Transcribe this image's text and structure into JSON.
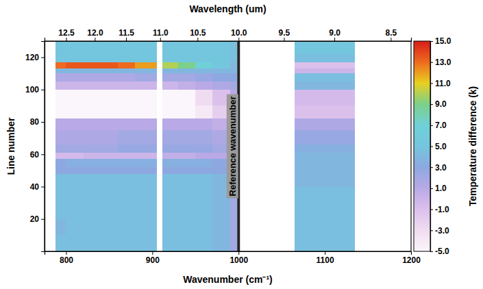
{
  "chart_data": {
    "type": "heatmap",
    "x_label": "Wavenumber (cm⁻¹)",
    "x2_label": "Wavelength (um)",
    "y_label": "Line number",
    "xlim": [
      775,
      1200
    ],
    "xticks": [
      800,
      900,
      1000,
      1100,
      1200
    ],
    "x2ticks": [
      {
        "value": 800,
        "label": "12.5"
      },
      {
        "value": 833.3,
        "label": "12.0"
      },
      {
        "value": 869.6,
        "label": "11.5"
      },
      {
        "value": 909.1,
        "label": "11.0"
      },
      {
        "value": 952.4,
        "label": "10.5"
      },
      {
        "value": 1000,
        "label": "10.0"
      },
      {
        "value": 1052.6,
        "label": "9.5"
      },
      {
        "value": 1111.1,
        "label": "9.0"
      },
      {
        "value": 1176.5,
        "label": "8.5"
      }
    ],
    "ylim": [
      0,
      130
    ],
    "yticks": [
      20,
      40,
      60,
      80,
      100,
      120
    ],
    "heatmap": {
      "x_edges": [
        788,
        800,
        820,
        840,
        860,
        880,
        905,
        912,
        930,
        950,
        970,
        990,
        998,
        1002,
        1065,
        1080,
        1100,
        1120,
        1135
      ],
      "y_edges": [
        0,
        10,
        20,
        30,
        40,
        48,
        52,
        57,
        61,
        66,
        75,
        82,
        90,
        100,
        105,
        110,
        113,
        117,
        122,
        130
      ],
      "values": [
        [
          4.5,
          4.5,
          4.5,
          4.5,
          4.5,
          4.5,
          null,
          4.5,
          4.5,
          4.5,
          4,
          2,
          null,
          null,
          4.5,
          4.5,
          4.5,
          4.5
        ],
        [
          4,
          4.5,
          4.5,
          4.5,
          4.5,
          4.5,
          null,
          4.5,
          4.5,
          4.5,
          4,
          2,
          null,
          null,
          4.5,
          4.5,
          4.5,
          4.5
        ],
        [
          4.5,
          4.5,
          4.5,
          4.5,
          4.5,
          4.5,
          null,
          4.5,
          4.5,
          4.5,
          4,
          2,
          null,
          null,
          4.5,
          4.5,
          4.5,
          4.5
        ],
        [
          4.5,
          4.5,
          4.5,
          4.5,
          4.5,
          4.5,
          null,
          4.5,
          4.5,
          4.5,
          4,
          2,
          null,
          null,
          4.5,
          4.5,
          4.5,
          4.5
        ],
        [
          4.5,
          4.5,
          4.5,
          4.5,
          4.5,
          4.5,
          null,
          4.5,
          4.5,
          4.5,
          4,
          2,
          null,
          null,
          4,
          4,
          4,
          4
        ],
        [
          3,
          3,
          3,
          3,
          3,
          3,
          null,
          3,
          3,
          3,
          3,
          2,
          null,
          null,
          4,
          4,
          4,
          4
        ],
        [
          3,
          3.5,
          3.5,
          3.5,
          3.5,
          3.5,
          null,
          3.5,
          3.5,
          3.5,
          3,
          1.5,
          null,
          null,
          4,
          4,
          4,
          4
        ],
        [
          -0.5,
          -0.5,
          0,
          0,
          0,
          0,
          null,
          0.5,
          0.5,
          1,
          1,
          1,
          null,
          null,
          4,
          4,
          4,
          4
        ],
        [
          2,
          2,
          2,
          2,
          2.5,
          2.5,
          null,
          2.5,
          2.5,
          2.5,
          2,
          1,
          null,
          null,
          3.5,
          3.5,
          3.5,
          3.5
        ],
        [
          1.5,
          1.5,
          1.5,
          1.5,
          2,
          2,
          null,
          2,
          2,
          2,
          1.5,
          1,
          null,
          null,
          2.5,
          2.5,
          2.5,
          2.5
        ],
        [
          1,
          1,
          1,
          1,
          1,
          1,
          null,
          1,
          1,
          1,
          0.5,
          0.5,
          null,
          null,
          1.5,
          1.5,
          1.5,
          1.5
        ],
        [
          -5,
          -5,
          -5,
          -5,
          -5,
          -5,
          null,
          -5,
          -5,
          -4,
          -2,
          0,
          null,
          null,
          -1,
          -1,
          -1,
          -1
        ],
        [
          -5,
          -5,
          -5,
          -5,
          -5,
          -5,
          null,
          -5,
          -5,
          -3,
          -1,
          1,
          null,
          null,
          -0.5,
          -0.5,
          -0.5,
          -0.5
        ],
        [
          0,
          0,
          0,
          0,
          0,
          0,
          null,
          0,
          0.5,
          1,
          1.5,
          2,
          null,
          null,
          4,
          4,
          4,
          4
        ],
        [
          1.5,
          1.5,
          1.5,
          1.5,
          1.5,
          2,
          null,
          2,
          2,
          2.5,
          3,
          3,
          null,
          null,
          4.5,
          4.5,
          4.5,
          4.5
        ],
        [
          4,
          4,
          4,
          4,
          4,
          4,
          null,
          4,
          4,
          4,
          4,
          4,
          null,
          null,
          0,
          0,
          0,
          0
        ],
        [
          13,
          13.5,
          13.5,
          13.5,
          13,
          12,
          null,
          10,
          9,
          7,
          5,
          4,
          null,
          null,
          -1,
          -1,
          -1,
          -1
        ],
        [
          5,
          5,
          5,
          5,
          5,
          5,
          null,
          5,
          5,
          5,
          5,
          4.5,
          null,
          null,
          4.5,
          4.5,
          4.5,
          4.5
        ],
        [
          5,
          5,
          5,
          5,
          5,
          5,
          null,
          5,
          5,
          5,
          5,
          4.5,
          null,
          null,
          5,
          5,
          5,
          5
        ]
      ]
    },
    "colorbar": {
      "label": "Temperature difference (k)",
      "range": [
        -5,
        15
      ],
      "ticks": [
        {
          "value": -5,
          "label": "-5.0"
        },
        {
          "value": -3,
          "label": "-3.0"
        },
        {
          "value": -1,
          "label": "-1.0"
        },
        {
          "value": 1,
          "label": "1.0"
        },
        {
          "value": 3,
          "label": "3.0"
        },
        {
          "value": 5,
          "label": "5.0"
        },
        {
          "value": 7,
          "label": "7.0"
        },
        {
          "value": 9,
          "label": "9.0"
        },
        {
          "value": 11,
          "label": "11.0"
        },
        {
          "value": 13,
          "label": "13.0"
        },
        {
          "value": 15,
          "label": "15.0"
        }
      ],
      "colors": [
        "#fbf6fb",
        "#f0dcf0",
        "#dcc0ec",
        "#b9a9e6",
        "#8da8e0",
        "#74c6de",
        "#6fd0d8",
        "#7cd08a",
        "#e8d020",
        "#ee6a1e",
        "#d81e1a"
      ]
    },
    "annotations": [
      {
        "x": 1000,
        "label": "Reference wavenumber"
      }
    ]
  }
}
